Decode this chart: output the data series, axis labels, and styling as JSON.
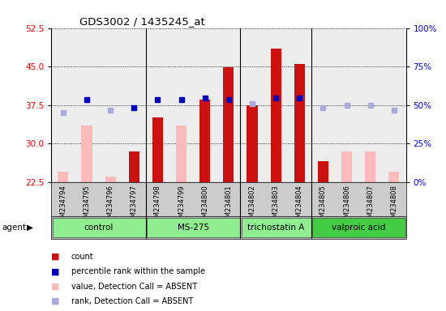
{
  "title": "GDS3002 / 1435245_at",
  "samples": [
    "GSM234794",
    "GSM234795",
    "GSM234796",
    "GSM234797",
    "GSM234798",
    "GSM234799",
    "GSM234800",
    "GSM234801",
    "GSM234802",
    "GSM234803",
    "GSM234804",
    "GSM234805",
    "GSM234806",
    "GSM234807",
    "GSM234808"
  ],
  "agents": [
    {
      "label": "control",
      "start": 0,
      "end": 4,
      "color": "#90ee90"
    },
    {
      "label": "MS-275",
      "start": 4,
      "end": 8,
      "color": "#90ee90"
    },
    {
      "label": "trichostatin A",
      "start": 8,
      "end": 11,
      "color": "#90ee90"
    },
    {
      "label": "valproic acid",
      "start": 11,
      "end": 15,
      "color": "#44cc44"
    }
  ],
  "count_values": [
    null,
    null,
    null,
    28.5,
    35.0,
    null,
    38.5,
    44.8,
    37.5,
    48.5,
    45.5,
    26.5,
    null,
    null,
    null
  ],
  "absent_value": [
    24.5,
    33.5,
    23.5,
    null,
    null,
    33.5,
    null,
    null,
    null,
    null,
    null,
    null,
    28.5,
    28.5,
    24.5
  ],
  "percentile_rank": [
    null,
    38.5,
    null,
    37.0,
    38.5,
    38.5,
    38.8,
    38.5,
    null,
    38.8,
    38.8,
    null,
    null,
    null,
    null
  ],
  "absent_rank": [
    36.0,
    null,
    36.5,
    null,
    null,
    null,
    null,
    null,
    37.8,
    null,
    null,
    37.0,
    37.5,
    37.5,
    36.5
  ],
  "ylim": [
    22.5,
    52.5
  ],
  "yticks_left": [
    22.5,
    30.0,
    37.5,
    45.0,
    52.5
  ],
  "yticks_right": [
    0,
    25,
    50,
    75,
    100
  ],
  "bar_color_present": "#cc1111",
  "bar_color_absent": "#ffbbbb",
  "dot_color_present": "#0000bb",
  "dot_color_absent": "#aaaadd",
  "col_bg_color": "#cccccc",
  "agent_bg_color": "#bbbbbb"
}
